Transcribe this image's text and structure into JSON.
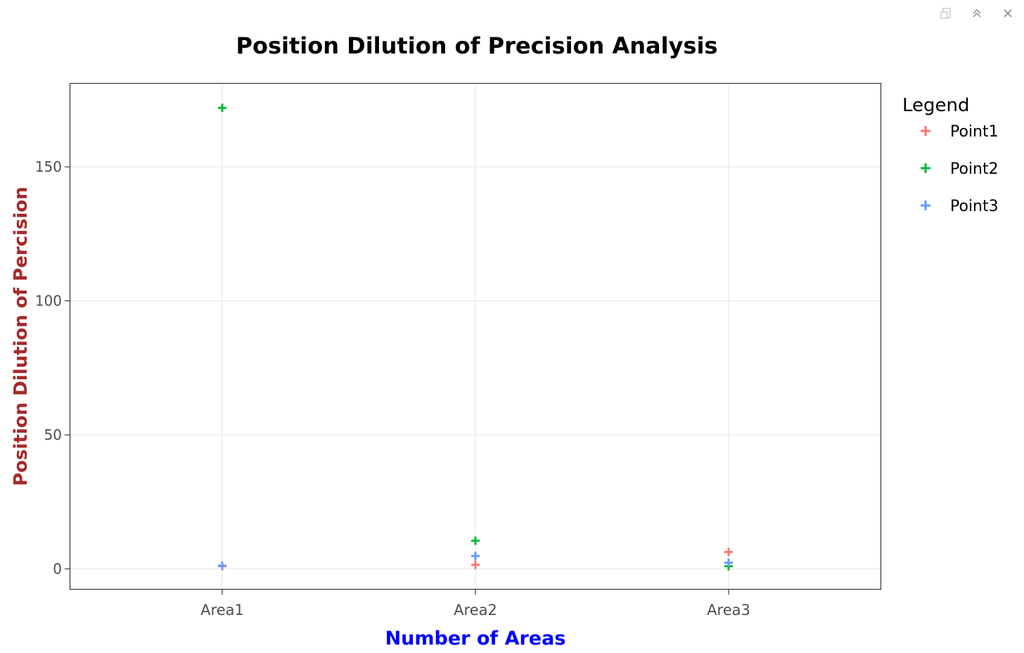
{
  "window": {
    "icons": [
      "export-icon",
      "collapse-up-icon",
      "close-icon"
    ]
  },
  "chart_data": {
    "type": "scatter",
    "title": "Position Dilution of Precision Analysis",
    "xlabel": "Number of Areas",
    "ylabel": "Position Dilution of Percision",
    "categories": [
      "Area1",
      "Area2",
      "Area3"
    ],
    "ylim": [
      -7.5,
      181
    ],
    "yticks": [
      0,
      50,
      100,
      150
    ],
    "grid": true,
    "marker": "plus",
    "legend": {
      "title": "Legend",
      "placement": "right",
      "entries": [
        "Point1",
        "Point2",
        "Point3"
      ]
    },
    "series": [
      {
        "name": "Point1",
        "color": "#F8766D",
        "values": [
          1.0,
          1.5,
          6.3
        ]
      },
      {
        "name": "Point2",
        "color": "#00BA38",
        "values": [
          172.0,
          10.5,
          1.0
        ]
      },
      {
        "name": "Point3",
        "color": "#619CFF",
        "values": [
          1.2,
          4.8,
          2.3
        ]
      }
    ],
    "colors": {
      "title": "#000000",
      "xlabel": "#0000FF",
      "ylabel": "#A52A2A",
      "grid": "#EBEBEB",
      "axis_text": "#4D4D4D"
    }
  }
}
